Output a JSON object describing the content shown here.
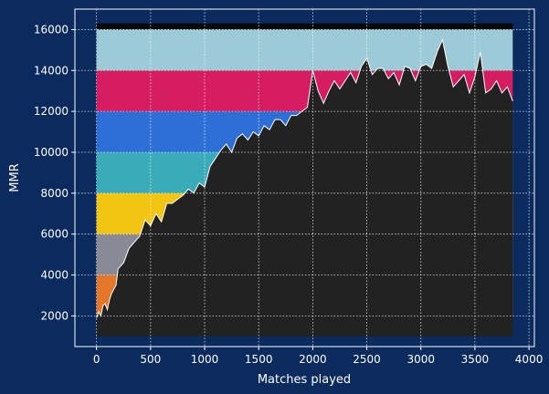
{
  "colors": {
    "background": "#0b2a5e",
    "plot_background": "#0b2a5e",
    "fill_below_line": "#222222",
    "line": "#ffffff",
    "grid": "#ffffff",
    "axes": "#ffffff"
  },
  "chart_data": {
    "type": "line",
    "title": "",
    "xlabel": "Matches played",
    "ylabel": "MMR",
    "xlim": [
      -200,
      4050
    ],
    "ylim": [
      500,
      17000
    ],
    "xticks": [
      0,
      500,
      1000,
      1500,
      2000,
      2500,
      3000,
      3500,
      4000
    ],
    "yticks": [
      2000,
      4000,
      6000,
      8000,
      10000,
      12000,
      14000,
      16000
    ],
    "grid": true,
    "grid_style": "dotted",
    "rank_bands": [
      {
        "from": 1000,
        "to": 2000,
        "color": "#222222"
      },
      {
        "from": 2000,
        "to": 4000,
        "color": "#e3782a"
      },
      {
        "from": 4000,
        "to": 6000,
        "color": "#8a8a96"
      },
      {
        "from": 6000,
        "to": 8000,
        "color": "#f2c513"
      },
      {
        "from": 8000,
        "to": 10000,
        "color": "#3aabb8"
      },
      {
        "from": 10000,
        "to": 12000,
        "color": "#2d6fd6"
      },
      {
        "from": 12000,
        "to": 14000,
        "color": "#d61d61"
      },
      {
        "from": 14000,
        "to": 16000,
        "color": "#9ccad6"
      },
      {
        "from": 16000,
        "to": 16300,
        "color": "#0a0a0a"
      }
    ],
    "band_x_range": [
      0,
      3850
    ],
    "fill_floor": 1000,
    "series": [
      {
        "x": [
          0,
          20,
          40,
          60,
          80,
          100,
          120,
          140,
          160,
          180,
          200,
          250,
          300,
          350,
          400,
          450,
          500,
          550,
          600,
          650,
          700,
          750,
          800,
          850,
          900,
          950,
          1000,
          1050,
          1100,
          1150,
          1200,
          1250,
          1300,
          1350,
          1400,
          1450,
          1500,
          1550,
          1600,
          1650,
          1700,
          1750,
          1800,
          1850,
          1900,
          1950,
          2000,
          2050,
          2100,
          2150,
          2200,
          2250,
          2300,
          2350,
          2400,
          2450,
          2500,
          2550,
          2600,
          2650,
          2700,
          2750,
          2800,
          2850,
          2900,
          2950,
          3000,
          3050,
          3100,
          3150,
          3200,
          3250,
          3300,
          3350,
          3400,
          3450,
          3500,
          3550,
          3600,
          3650,
          3700,
          3750,
          3800,
          3850
        ],
        "y": [
          1900,
          2200,
          2000,
          2500,
          2600,
          2300,
          2800,
          3100,
          3300,
          3500,
          4300,
          4600,
          5300,
          5600,
          5900,
          6700,
          6400,
          7000,
          6600,
          7500,
          7500,
          7700,
          7900,
          8200,
          8000,
          8500,
          8300,
          9300,
          9700,
          10100,
          10400,
          10000,
          10700,
          10900,
          10600,
          11000,
          10800,
          11300,
          11100,
          11600,
          11600,
          11300,
          11800,
          11800,
          12000,
          12200,
          14000,
          13000,
          12400,
          13000,
          13500,
          13100,
          13500,
          13900,
          13400,
          14200,
          14600,
          13800,
          14100,
          14100,
          13600,
          13900,
          13300,
          14200,
          14100,
          13500,
          14200,
          14300,
          14100,
          14900,
          15500,
          14200,
          13200,
          13500,
          13800,
          12900,
          13700,
          14900,
          12900,
          13100,
          13500,
          12900,
          13200,
          12500
        ]
      }
    ]
  }
}
